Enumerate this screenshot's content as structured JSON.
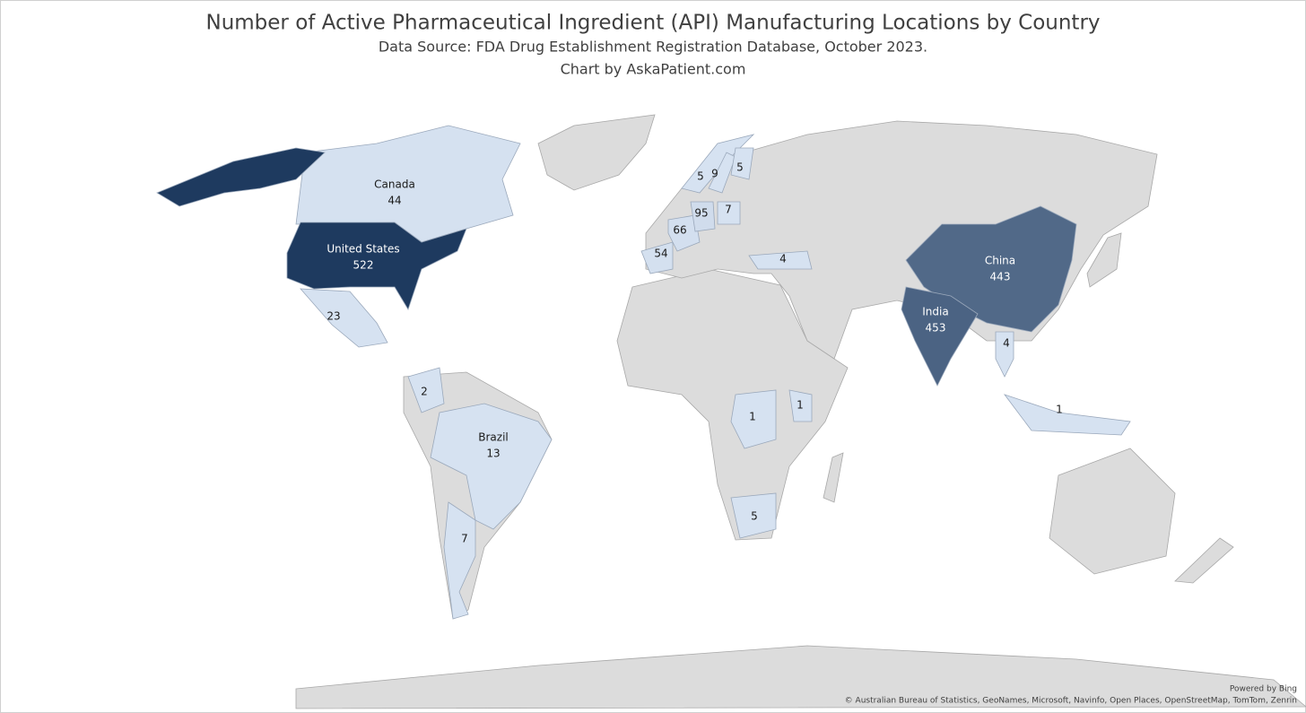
{
  "chart_data": {
    "type": "choropleth",
    "title": "Number of Active Pharmaceutical Ingredient (API) Manufacturing Locations by Country",
    "subtitle": [
      "Data Source: FDA Drug Establishment Registration Database, October 2023.",
      "Chart by AskaPatient.com"
    ],
    "categories": [
      "Canada",
      "United States",
      null,
      null,
      "Brazil",
      null,
      null,
      null,
      null,
      null,
      null,
      null,
      null,
      null,
      null,
      null,
      null,
      "China",
      "India",
      null,
      null
    ],
    "values": [
      44,
      522,
      23,
      2,
      13,
      7,
      54,
      66,
      95,
      7,
      5,
      9,
      5,
      4,
      1,
      1,
      5,
      443,
      453,
      4,
      1
    ],
    "color_scale": [
      "#d6e2f1",
      "#1e3a5f"
    ],
    "land_color": "#dcdcdc",
    "credits": [
      "Powered by Bing",
      "© Australian Bureau of Statistics, GeoNames, Microsoft, Navinfo, Open Places, OpenStreetMap, TomTom, Zenrin"
    ]
  }
}
